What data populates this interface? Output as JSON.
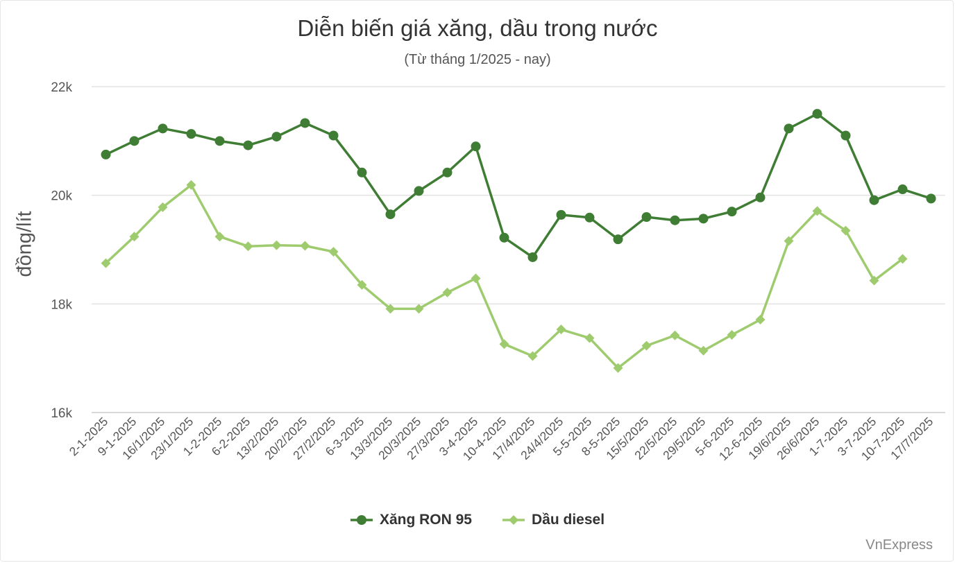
{
  "chart_data": {
    "type": "line",
    "title": "Diễn biến giá xăng, dầu trong nước",
    "subtitle": "(Từ tháng 1/2025 - nay)",
    "ylabel": "đồng/lít",
    "ylim": [
      16000,
      22000
    ],
    "yticks": [
      16000,
      18000,
      20000,
      22000
    ],
    "ytick_labels": [
      "16k",
      "18k",
      "20k",
      "22k"
    ],
    "grid": true,
    "legend_position": "bottom",
    "categories": [
      "2-1-2025",
      "9-1-2025",
      "16/1/2025",
      "23/1/2025",
      "1-2-2025",
      "6-2-2025",
      "13/2/2025",
      "20/2/2025",
      "27/2/2025",
      "6-3-2025",
      "13/3/2025",
      "20/3/2025",
      "27/3/2025",
      "3-4-2025",
      "10-4-2025",
      "17/4/2025",
      "24/4/2025",
      "5-5-2025",
      "8-5-2025",
      "15/5/2025",
      "22/5/2025",
      "29/5/2025",
      "5-6-2025",
      "12-6-2025",
      "19/6/2025",
      "26/6/2025",
      "1-7-2025",
      "3-7-2025",
      "10-7-2025",
      "17/7/2025"
    ],
    "series": [
      {
        "name": "Xăng RON 95",
        "color": "#3f7d34",
        "marker": "circle",
        "values": [
          20750,
          21000,
          21230,
          21130,
          21000,
          20920,
          21080,
          21330,
          21100,
          20420,
          19650,
          20080,
          20420,
          20900,
          19220,
          18860,
          19640,
          19590,
          19190,
          19600,
          19540,
          19570,
          19700,
          19960,
          21230,
          21500,
          21100,
          19910,
          20110,
          19940
        ]
      },
      {
        "name": "Dầu diesel",
        "color": "#9fcb6f",
        "marker": "diamond",
        "values": [
          18750,
          19240,
          19780,
          20190,
          19240,
          19060,
          19080,
          19070,
          18960,
          18350,
          17910,
          17910,
          18210,
          18470,
          17260,
          17040,
          17530,
          17370,
          16820,
          17230,
          17420,
          17140,
          17430,
          17710,
          19160,
          19710,
          19350,
          18430,
          18830,
          null
        ]
      }
    ]
  },
  "credit": "VnExpress"
}
